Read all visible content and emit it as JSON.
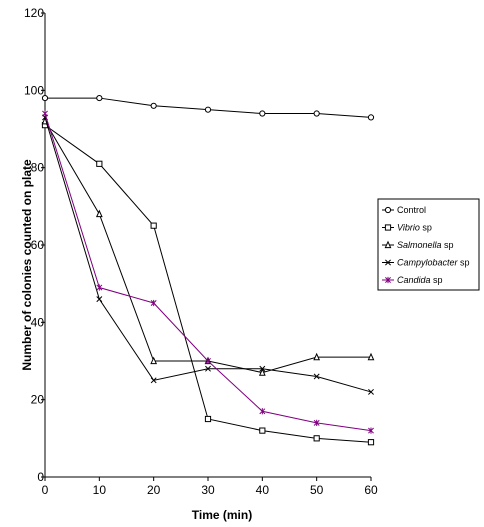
{
  "chart_data": {
    "type": "line",
    "xlabel": "Time (min)",
    "ylabel": "Number of colonies counted on plate",
    "xlim": [
      0,
      60
    ],
    "ylim": [
      0,
      120
    ],
    "xticks": [
      0,
      10,
      20,
      30,
      40,
      50,
      60
    ],
    "yticks": [
      0,
      20,
      40,
      60,
      80,
      100,
      120
    ],
    "grid": false,
    "legend": "right",
    "x": [
      0,
      10,
      20,
      30,
      40,
      50,
      60
    ],
    "series": [
      {
        "name": "Control",
        "italic": "",
        "suffix": "",
        "marker": "circle",
        "color": "#000000",
        "values": [
          98,
          98,
          96,
          95,
          94,
          94,
          93
        ]
      },
      {
        "name": "Vibrio sp",
        "italic": "Vibrio",
        "suffix": " sp",
        "marker": "square",
        "color": "#000000",
        "values": [
          91,
          81,
          65,
          15,
          12,
          10,
          9
        ]
      },
      {
        "name": "Salmonella sp",
        "italic": "Salmonella",
        "suffix": " sp",
        "marker": "triangle",
        "color": "#000000",
        "values": [
          92,
          68,
          30,
          30,
          27,
          31,
          31
        ]
      },
      {
        "name": "Campylobacter sp",
        "italic": "Campylobacter",
        "suffix": " sp",
        "marker": "x",
        "color": "#000000",
        "values": [
          93,
          46,
          25,
          28,
          28,
          26,
          22
        ]
      },
      {
        "name": "Candida sp",
        "italic": "Candida",
        "suffix": " sp",
        "marker": "asterisk",
        "color": "#800080",
        "values": [
          94,
          49,
          45,
          30,
          17,
          14,
          12
        ]
      }
    ]
  }
}
